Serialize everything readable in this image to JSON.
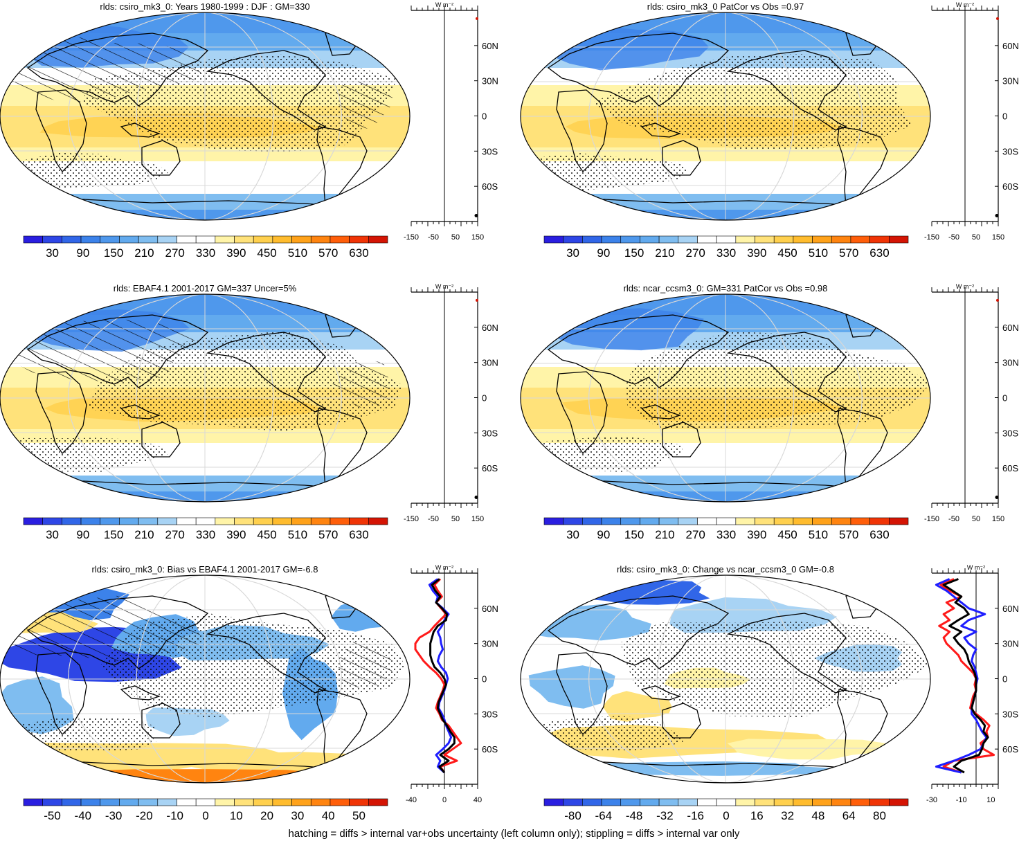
{
  "footer_text": "hatching = diffs > internal var+obs uncertainty (left column only); stippling = diffs > internal var only",
  "colors": {
    "coast": "#000000",
    "grid": "#d8d8d8",
    "red_series": "#ff1a1a",
    "blue_series": "#1e1eff",
    "black_series": "#000000"
  },
  "chart_data": [
    {
      "type": "heatmap",
      "title": "rlds: csiro_mk3_0: Years 1980-1999 : DJF : GM=330",
      "kind": "absolute",
      "colorbar": {
        "labels": [
          "30",
          "90",
          "150",
          "210",
          "270",
          "330",
          "390",
          "450",
          "510",
          "570",
          "630"
        ]
      },
      "zonal": {
        "xticks": [
          "-150",
          "-50",
          "50",
          "150"
        ],
        "xlim": [
          -150,
          150
        ],
        "unit_label": "W m⁻²",
        "lat_ticks": [
          "60N",
          "30N",
          "0",
          "30S",
          "60S"
        ],
        "series": "flat"
      }
    },
    {
      "type": "heatmap",
      "title": "rlds: csiro_mk3_0 PatCor vs Obs =0.97",
      "kind": "absolute",
      "colorbar": {
        "labels": [
          "30",
          "90",
          "150",
          "210",
          "270",
          "330",
          "390",
          "450",
          "510",
          "570",
          "630"
        ]
      },
      "zonal": {
        "xticks": [
          "-150",
          "-50",
          "50",
          "150"
        ],
        "xlim": [
          -150,
          150
        ],
        "unit_label": "W m⁻²",
        "lat_ticks": [
          "60N",
          "30N",
          "0",
          "30S",
          "60S"
        ],
        "series": "flat"
      }
    },
    {
      "type": "heatmap",
      "title": "rlds: EBAF4.1 2001-2017 GM=337 Uncer=5%",
      "kind": "absolute",
      "colorbar": {
        "labels": [
          "30",
          "90",
          "150",
          "210",
          "270",
          "330",
          "390",
          "450",
          "510",
          "570",
          "630"
        ]
      },
      "zonal": {
        "xticks": [
          "-150",
          "-50",
          "50",
          "150"
        ],
        "xlim": [
          -150,
          150
        ],
        "unit_label": "W m⁻²",
        "lat_ticks": [
          "60N",
          "30N",
          "0",
          "30S",
          "60S"
        ],
        "series": "flat"
      }
    },
    {
      "type": "heatmap",
      "title": "rlds: ncar_ccsm3_0: GM=331 PatCor vs Obs =0.98",
      "kind": "absolute",
      "colorbar": {
        "labels": [
          "30",
          "90",
          "150",
          "210",
          "270",
          "330",
          "390",
          "450",
          "510",
          "570",
          "630"
        ]
      },
      "zonal": {
        "xticks": [
          "-150",
          "-50",
          "50",
          "150"
        ],
        "xlim": [
          -150,
          150
        ],
        "unit_label": "W m⁻²",
        "lat_ticks": [
          "60N",
          "30N",
          "0",
          "30S",
          "60S"
        ],
        "series": "flat"
      }
    },
    {
      "type": "heatmap",
      "title": "rlds: csiro_mk3_0: Bias vs EBAF4.1 2001-2017 GM=-6.8",
      "kind": "bias",
      "colorbar": {
        "labels": [
          "-50",
          "-40",
          "-30",
          "-20",
          "-10",
          "0",
          "10",
          "20",
          "30",
          "40",
          "50"
        ]
      },
      "zonal": {
        "xticks": [
          "-40",
          "0",
          "40"
        ],
        "xlim": [
          -40,
          40
        ],
        "unit_label": "W m⁻²",
        "lat_ticks": [
          "60N",
          "30N",
          "0",
          "30S",
          "60S"
        ],
        "lat": [
          85,
          80,
          75,
          70,
          65,
          60,
          55,
          50,
          45,
          40,
          35,
          30,
          25,
          20,
          15,
          10,
          5,
          0,
          -5,
          -10,
          -15,
          -20,
          -25,
          -30,
          -35,
          -40,
          -45,
          -50,
          -55,
          -60,
          -65,
          -70,
          -75,
          -80
        ],
        "series": [
          {
            "color_key": "red_series",
            "values": [
              -5,
              -12,
              -8,
              -3,
              -10,
              -4,
              2,
              -5,
              -12,
              -18,
              -30,
              -35,
              -35,
              -30,
              -25,
              -18,
              -10,
              -4,
              0,
              -2,
              -5,
              -8,
              -10,
              -6,
              -3,
              5,
              10,
              15,
              20,
              10,
              0,
              15,
              -5,
              0
            ]
          },
          {
            "color_key": "blue_series",
            "values": [
              -8,
              -18,
              -14,
              -8,
              -10,
              -2,
              5,
              0,
              -3,
              -8,
              -5,
              -4,
              -2,
              -6,
              -8,
              -4,
              2,
              4,
              2,
              0,
              -3,
              -6,
              -7,
              -3,
              0,
              2,
              5,
              8,
              5,
              -2,
              -10,
              -5,
              -8,
              0
            ]
          },
          {
            "color_key": "black_series",
            "values": [
              -6,
              -15,
              -11,
              -5,
              -10,
              -3,
              3,
              2,
              -8,
              -13,
              -15,
              -17,
              -17,
              -17,
              -15,
              -12,
              -5,
              0,
              2,
              -1,
              -4,
              -7,
              -8,
              -5,
              -2,
              3,
              7,
              12,
              12,
              5,
              -5,
              5,
              -6,
              0
            ]
          }
        ]
      }
    },
    {
      "type": "heatmap",
      "title": "rlds: csiro_mk3_0: Change vs ncar_ccsm3_0 GM=-0.8",
      "kind": "change",
      "colorbar": {
        "labels": [
          "-80",
          "-64",
          "-48",
          "-32",
          "-16",
          "0",
          "16",
          "32",
          "48",
          "64",
          "80"
        ]
      },
      "zonal": {
        "xticks": [
          "-30",
          "-10",
          "10"
        ],
        "xlim": [
          -30,
          15
        ],
        "unit_label": "W m⁻²",
        "lat_ticks": [
          "60N",
          "30N",
          "0",
          "30S",
          "60S"
        ],
        "lat": [
          85,
          80,
          75,
          70,
          65,
          60,
          55,
          50,
          45,
          40,
          35,
          30,
          25,
          20,
          15,
          10,
          5,
          0,
          -5,
          -10,
          -15,
          -20,
          -25,
          -30,
          -35,
          -40,
          -45,
          -50,
          -55,
          -60,
          -65,
          -70,
          -75,
          -80
        ],
        "series": [
          {
            "color_key": "red_series",
            "values": [
              -15,
              -24,
              -18,
              -10,
              -20,
              -15,
              -22,
              -18,
              -25,
              -18,
              -22,
              -20,
              -16,
              -12,
              -10,
              -6,
              -2,
              0,
              -1,
              0,
              -2,
              -3,
              -4,
              0,
              5,
              9,
              7,
              8,
              3,
              5,
              12,
              -15,
              -22,
              -10
            ]
          },
          {
            "color_key": "blue_series",
            "values": [
              -18,
              -27,
              -20,
              -15,
              -10,
              -5,
              6,
              -5,
              -10,
              0,
              -8,
              -5,
              0,
              -2,
              -3,
              -1,
              0,
              1,
              0,
              0,
              -1,
              -2,
              -3,
              -3,
              0,
              2,
              4,
              7,
              5,
              3,
              -5,
              -15,
              -27,
              -10
            ]
          },
          {
            "color_key": "black_series",
            "values": [
              -12,
              -22,
              -16,
              -10,
              -14,
              -8,
              -5,
              -12,
              -18,
              -10,
              -15,
              -12,
              -8,
              -6,
              -5,
              -3,
              -1,
              0,
              0,
              0,
              -1,
              -2,
              -3,
              -1,
              3,
              6,
              5,
              8,
              5,
              4,
              2,
              -10,
              -15,
              -8
            ]
          }
        ]
      }
    }
  ]
}
